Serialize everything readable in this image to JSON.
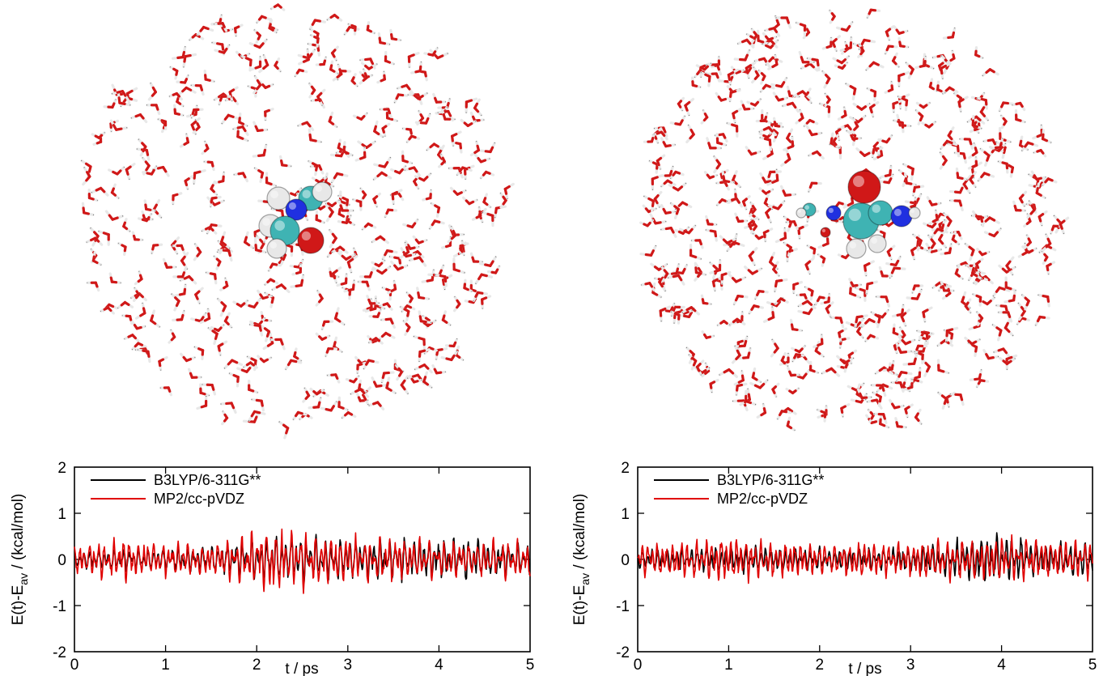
{
  "images": [
    {
      "type": "molecular-dynamics-snapshot",
      "solvent": "water",
      "solute": "small-molecule"
    },
    {
      "type": "molecular-dynamics-snapshot",
      "solvent": "water",
      "solute": "peptide"
    }
  ],
  "colors": {
    "oxygen": "#d01818",
    "hydrogen": "#e8e8e8",
    "carbon": "#3fb3b3",
    "nitrogen": "#2030e0",
    "black_series": "#000000",
    "red_series": "#e00000"
  },
  "chart_data": [
    {
      "type": "line",
      "xlabel": "t / ps",
      "ylabel_main": "E(t)-E",
      "ylabel_sub": "av",
      "ylabel_unit": " / (kcal/mol)",
      "xlim": [
        0,
        5
      ],
      "ylim": [
        -2,
        2
      ],
      "xticks": [
        "0",
        "1",
        "2",
        "3",
        "4",
        "5"
      ],
      "yticks": [
        "2",
        "1",
        "0",
        "-1",
        "-2"
      ],
      "legend": "top-left",
      "grid": false,
      "series": [
        {
          "name": "B3LYP/6-311G**",
          "color": "#000000",
          "amplitude": 0.28,
          "seed": 11,
          "envelope": [
            [
              0,
              0.6
            ],
            [
              1.5,
              0.9
            ],
            [
              2.2,
              1.6
            ],
            [
              2.8,
              1.4
            ],
            [
              4,
              1.5
            ],
            [
              5,
              1.1
            ]
          ]
        },
        {
          "name": "MP2/cc-pVDZ",
          "color": "#e00000",
          "amplitude": 0.3,
          "seed": 23,
          "envelope": [
            [
              0,
              1.1
            ],
            [
              0.5,
              1.4
            ],
            [
              1.5,
              1.0
            ],
            [
              2.2,
              2.2
            ],
            [
              2.8,
              1.6
            ],
            [
              4,
              1.3
            ],
            [
              5,
              1.2
            ]
          ]
        }
      ]
    },
    {
      "type": "line",
      "xlabel": "t / ps",
      "ylabel_main": "E(t)-E",
      "ylabel_sub": "av",
      "ylabel_unit": " / (kcal/mol)",
      "xlim": [
        0,
        5
      ],
      "ylim": [
        -2,
        2
      ],
      "xticks": [
        "0",
        "1",
        "2",
        "3",
        "4",
        "5"
      ],
      "yticks": [
        "2",
        "1",
        "0",
        "-1",
        "-2"
      ],
      "legend": "top-left",
      "grid": false,
      "series": [
        {
          "name": "B3LYP/6-311G**",
          "color": "#000000",
          "amplitude": 0.22,
          "seed": 37,
          "envelope": [
            [
              0,
              0.9
            ],
            [
              1,
              1.2
            ],
            [
              2,
              1.0
            ],
            [
              3,
              1.1
            ],
            [
              4,
              2.2
            ],
            [
              4.5,
              1.3
            ],
            [
              5,
              1.6
            ]
          ]
        },
        {
          "name": "MP2/cc-pVDZ",
          "color": "#e00000",
          "amplitude": 0.27,
          "seed": 51,
          "envelope": [
            [
              0,
              1.2
            ],
            [
              1,
              1.6
            ],
            [
              2,
              1.2
            ],
            [
              3,
              1.3
            ],
            [
              4,
              1.6
            ],
            [
              5,
              1.3
            ]
          ]
        }
      ]
    }
  ]
}
